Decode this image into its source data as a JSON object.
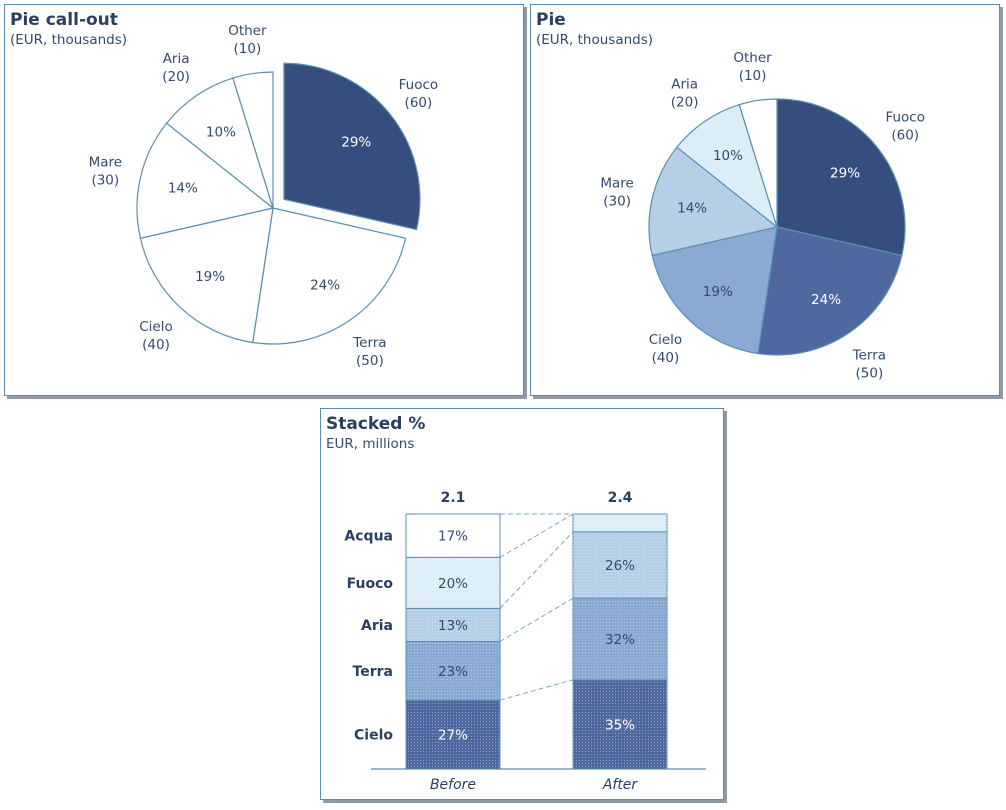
{
  "chart_data": [
    {
      "type": "pie",
      "title": "Pie call-out",
      "subtitle": "(EUR, thousands)",
      "exploded": "Fuoco",
      "slices": [
        {
          "name": "Fuoco",
          "value": 60,
          "value_label": "(60)",
          "pct_label": "29%",
          "color": "#354e7d"
        },
        {
          "name": "Terra",
          "value": 50,
          "value_label": "(50)",
          "pct_label": "24%",
          "color": "#ffffff"
        },
        {
          "name": "Cielo",
          "value": 40,
          "value_label": "(40)",
          "pct_label": "19%",
          "color": "#ffffff"
        },
        {
          "name": "Mare",
          "value": 30,
          "value_label": "(30)",
          "pct_label": "14%",
          "color": "#ffffff"
        },
        {
          "name": "Aria",
          "value": 20,
          "value_label": "(20)",
          "pct_label": "10%",
          "color": "#ffffff"
        },
        {
          "name": "Other",
          "value": 10,
          "value_label": "(10)",
          "pct_label": "",
          "color": "#ffffff"
        }
      ]
    },
    {
      "type": "pie",
      "title": "Pie",
      "subtitle": "(EUR, thousands)",
      "slices": [
        {
          "name": "Fuoco",
          "value": 60,
          "value_label": "(60)",
          "pct_label": "29%",
          "color": "#354e7d"
        },
        {
          "name": "Terra",
          "value": 50,
          "value_label": "(50)",
          "pct_label": "24%",
          "color": "#4f68a0"
        },
        {
          "name": "Cielo",
          "value": 40,
          "value_label": "(40)",
          "pct_label": "19%",
          "color": "#8aa9d3"
        },
        {
          "name": "Mare",
          "value": 30,
          "value_label": "(30)",
          "pct_label": "14%",
          "color": "#b4cfe6"
        },
        {
          "name": "Aria",
          "value": 20,
          "value_label": "(20)",
          "pct_label": "10%",
          "color": "#dcedf7"
        },
        {
          "name": "Other",
          "value": 10,
          "value_label": "(10)",
          "pct_label": "",
          "color": "#ffffff"
        }
      ]
    },
    {
      "type": "bar",
      "stacked": "percent",
      "title": "Stacked %",
      "subtitle": "EUR, millions",
      "categories": [
        "Before",
        "After"
      ],
      "totals": [
        "2.1",
        "2.4"
      ],
      "series": [
        {
          "name": "Cielo",
          "values": [
            27,
            35
          ],
          "labels": [
            "27%",
            "35%"
          ],
          "color": "#4f68a0"
        },
        {
          "name": "Terra",
          "values": [
            23,
            32
          ],
          "labels": [
            "23%",
            "32%"
          ],
          "color": "#8aa9d3"
        },
        {
          "name": "Aria",
          "values": [
            13,
            26
          ],
          "labels": [
            "13%",
            "26%"
          ],
          "color": "#b4cfe6"
        },
        {
          "name": "Fuoco",
          "values": [
            20,
            7
          ],
          "labels": [
            "20%",
            ""
          ],
          "color": "#dcedf7"
        },
        {
          "name": "Acqua",
          "values": [
            17,
            0
          ],
          "labels": [
            "17%",
            ""
          ],
          "color": "#ffffff"
        }
      ]
    }
  ]
}
